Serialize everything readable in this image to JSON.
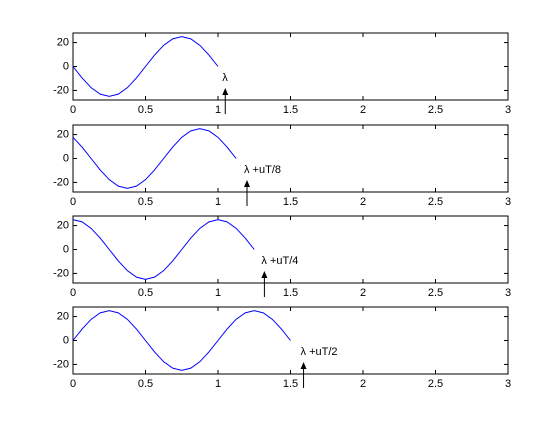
{
  "chart_data": [
    {
      "type": "line",
      "x": [
        0,
        0.0625,
        0.125,
        0.1875,
        0.25,
        0.3125,
        0.375,
        0.4375,
        0.5,
        0.5625,
        0.625,
        0.6875,
        0.75,
        0.8125,
        0.875,
        0.9375,
        1
      ],
      "series": [
        {
          "color": "#0000ff",
          "values": [
            0,
            -9.6,
            -17.7,
            -23.1,
            -25,
            -23.1,
            -17.7,
            -9.6,
            0,
            9.6,
            17.7,
            23.1,
            25,
            23.1,
            17.7,
            9.6,
            0
          ]
        }
      ],
      "xlim": [
        0,
        3
      ],
      "ylim": [
        -28,
        28
      ],
      "xticks": [
        0,
        0.5,
        1,
        1.5,
        2,
        2.5,
        3
      ],
      "yticks": [
        -20,
        0,
        20
      ],
      "annotation": {
        "text": "λ",
        "x": 1.05
      }
    },
    {
      "type": "line",
      "x": [
        0,
        0.0625,
        0.125,
        0.1875,
        0.25,
        0.3125,
        0.375,
        0.4375,
        0.5,
        0.5625,
        0.625,
        0.6875,
        0.75,
        0.8125,
        0.875,
        0.9375,
        1,
        1.0625,
        1.125
      ],
      "series": [
        {
          "color": "#0000ff",
          "values": [
            17.7,
            9.6,
            0,
            -9.6,
            -17.7,
            -23.1,
            -25,
            -23.1,
            -17.7,
            -9.6,
            0,
            9.6,
            17.7,
            23.1,
            25,
            23.1,
            17.7,
            9.6,
            0
          ]
        }
      ],
      "xlim": [
        0,
        3
      ],
      "ylim": [
        -28,
        28
      ],
      "xticks": [
        0,
        0.5,
        1,
        1.5,
        2,
        2.5,
        3
      ],
      "yticks": [
        -20,
        0,
        20
      ],
      "annotation": {
        "text": "λ +uT/8",
        "x": 1.2
      }
    },
    {
      "type": "line",
      "x": [
        0,
        0.0625,
        0.125,
        0.1875,
        0.25,
        0.3125,
        0.375,
        0.4375,
        0.5,
        0.5625,
        0.625,
        0.6875,
        0.75,
        0.8125,
        0.875,
        0.9375,
        1,
        1.0625,
        1.125,
        1.1875,
        1.25
      ],
      "series": [
        {
          "color": "#0000ff",
          "values": [
            25,
            23.1,
            17.7,
            9.6,
            0,
            -9.6,
            -17.7,
            -23.1,
            -25,
            -23.1,
            -17.7,
            -9.6,
            0,
            9.6,
            17.7,
            23.1,
            25,
            23.1,
            17.7,
            9.6,
            0
          ]
        }
      ],
      "xlim": [
        0,
        3
      ],
      "ylim": [
        -28,
        28
      ],
      "xticks": [
        0,
        0.5,
        1,
        1.5,
        2,
        2.5,
        3
      ],
      "yticks": [
        -20,
        0,
        20
      ],
      "annotation": {
        "text": "λ +uT/4",
        "x": 1.32
      }
    },
    {
      "type": "line",
      "x": [
        0,
        0.0625,
        0.125,
        0.1875,
        0.25,
        0.3125,
        0.375,
        0.4375,
        0.5,
        0.5625,
        0.625,
        0.6875,
        0.75,
        0.8125,
        0.875,
        0.9375,
        1,
        1.0625,
        1.125,
        1.1875,
        1.25,
        1.3125,
        1.375,
        1.4375,
        1.5
      ],
      "series": [
        {
          "color": "#0000ff",
          "values": [
            0,
            9.6,
            17.7,
            23.1,
            25,
            23.1,
            17.7,
            9.6,
            0,
            -9.6,
            -17.7,
            -23.1,
            -25,
            -23.1,
            -17.7,
            -9.6,
            0,
            9.6,
            17.7,
            23.1,
            25,
            23.1,
            17.7,
            9.6,
            0
          ]
        }
      ],
      "xlim": [
        0,
        3
      ],
      "ylim": [
        -28,
        28
      ],
      "xticks": [
        0,
        0.5,
        1,
        1.5,
        2,
        2.5,
        3
      ],
      "yticks": [
        -20,
        0,
        20
      ],
      "annotation": {
        "text": "λ +uT/2",
        "x": 1.59
      }
    }
  ]
}
